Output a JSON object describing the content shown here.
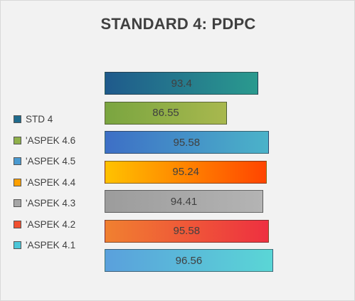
{
  "chart_data": {
    "type": "bar",
    "orientation": "horizontal",
    "title": "STANDARD 4: PDPC",
    "xlabel": "",
    "ylabel": "",
    "xlim": [
      0,
      100
    ],
    "grid": false,
    "legend_position": "left",
    "categories": [
      "STD 4",
      "'ASPEK 4.6",
      "'ASPEK 4.5",
      "'ASPEK 4.4",
      "'ASPEK 4.3",
      "'ASPEK 4.2",
      "'ASPEK 4.1"
    ],
    "values": [
      93.4,
      86.55,
      95.58,
      95.24,
      94.41,
      95.58,
      96.56
    ],
    "value_labels": [
      "93.4",
      "86.55",
      "95.58",
      "95.24",
      "94.41",
      "95.58",
      "96.56"
    ],
    "colors": [
      [
        "#1f5a8c",
        "#2a9a8e"
      ],
      [
        "#7aa540",
        "#a8b84e"
      ],
      [
        "#3d6fc6",
        "#4bb3c9"
      ],
      [
        "#ffc200",
        "#ff4500"
      ],
      [
        "#9c9c9c",
        "#b4b4b4"
      ],
      [
        "#f08030",
        "#ee3040"
      ],
      [
        "#5aa0dc",
        "#5ad6d6"
      ]
    ],
    "legend_colors": [
      "#1f6a8c",
      "#8fb04a",
      "#4a9ad0",
      "#ffa000",
      "#a6a6a6",
      "#f05030",
      "#4cc6d8"
    ]
  }
}
